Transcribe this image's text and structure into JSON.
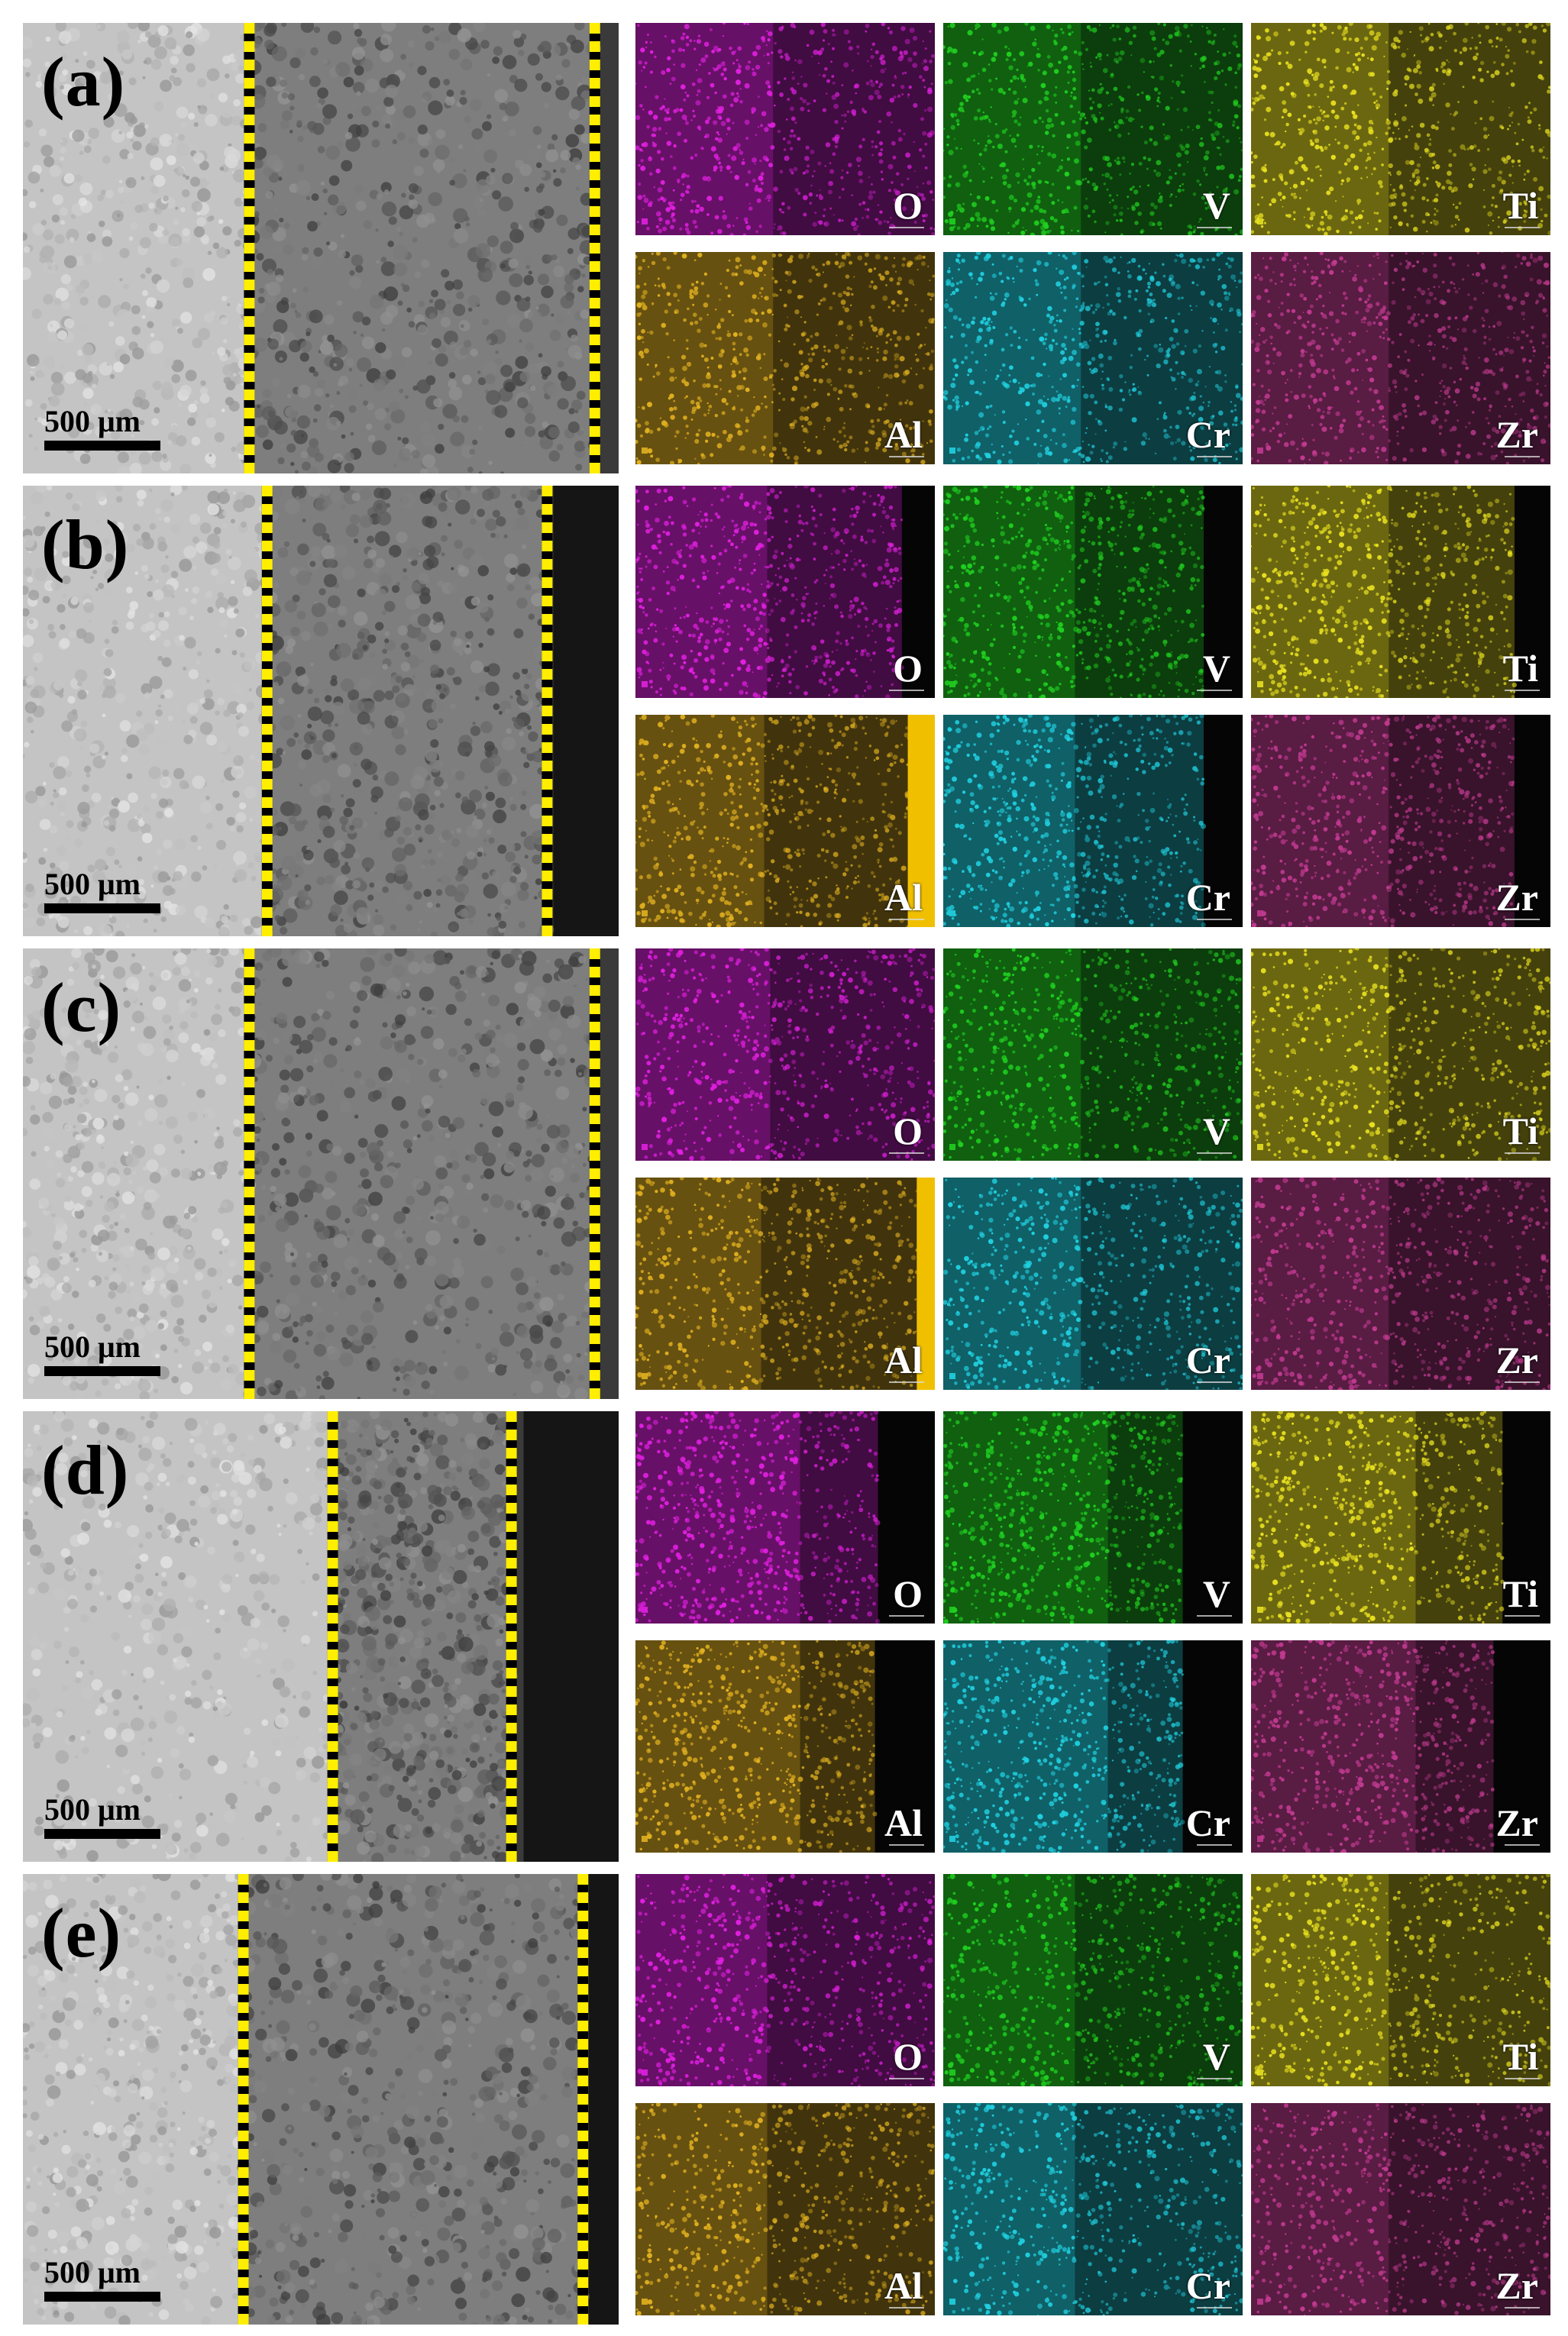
{
  "scale_bar_label": "500 μm",
  "panels": [
    {
      "label": "(a)"
    },
    {
      "label": "(b)"
    },
    {
      "label": "(c)"
    },
    {
      "label": "(d)"
    },
    {
      "label": "(e)"
    }
  ],
  "elements": [
    {
      "symbol": "O",
      "color": "#e020e0"
    },
    {
      "symbol": "V",
      "color": "#20d020"
    },
    {
      "symbol": "Ti",
      "color": "#e8e020"
    },
    {
      "symbol": "Al",
      "color": "#e0b020"
    },
    {
      "symbol": "Cr",
      "color": "#20d0e0"
    },
    {
      "symbol": "Zr",
      "color": "#c03a90"
    }
  ],
  "colors": {
    "boundary_dash": "#ffee00",
    "background": "#ffffff"
  }
}
